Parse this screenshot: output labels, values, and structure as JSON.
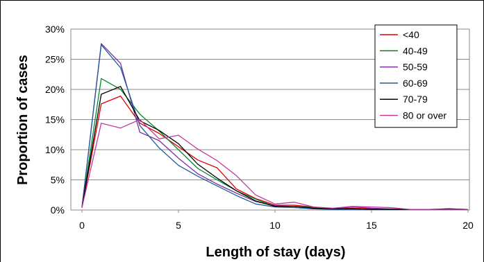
{
  "chart_data": {
    "type": "line",
    "title": "",
    "xlabel": "Length of stay (days)",
    "ylabel": "Proportion of cases",
    "xlim": [
      0,
      20
    ],
    "ylim": [
      0,
      30
    ],
    "x_ticks": [
      "0",
      "5",
      "10",
      "15",
      "20"
    ],
    "y_ticks": [
      "0%",
      "5%",
      "10%",
      "15%",
      "20%",
      "25%",
      "30%"
    ],
    "grid": "horizontal",
    "legend": "top-right",
    "x": [
      0,
      1,
      2,
      3,
      4,
      5,
      6,
      7,
      8,
      9,
      10,
      11,
      12,
      13,
      14,
      15,
      16,
      17,
      18,
      19,
      20
    ],
    "series": [
      {
        "name": "<40",
        "color": "#e00000",
        "values": [
          0.4,
          17.6,
          18.9,
          14.4,
          12.7,
          10.5,
          8.3,
          7.0,
          3.5,
          1.9,
          0.8,
          0.8,
          0.5,
          0.2,
          0.3,
          0.2,
          0.1,
          0.1,
          0.1,
          0.1,
          0.1
        ]
      },
      {
        "name": "40-49",
        "color": "#008a2e",
        "values": [
          0.4,
          21.8,
          20.0,
          15.9,
          13.1,
          10.0,
          6.9,
          5.0,
          3.2,
          1.8,
          0.6,
          0.6,
          0.4,
          0.2,
          0.2,
          0.1,
          0.1,
          0.1,
          0.1,
          0.1,
          0.1
        ]
      },
      {
        "name": "50-59",
        "color": "#7b2c9e",
        "values": [
          0.4,
          27.6,
          24.3,
          12.9,
          11.5,
          8.6,
          6.0,
          4.3,
          2.8,
          1.4,
          0.7,
          0.6,
          0.3,
          0.2,
          0.5,
          0.3,
          0.2,
          0.1,
          0.1,
          0.2,
          0.1
        ]
      },
      {
        "name": "60-69",
        "color": "#1f5d99",
        "values": [
          0.4,
          27.4,
          23.6,
          14.0,
          10.3,
          7.4,
          5.6,
          4.0,
          2.4,
          1.0,
          0.5,
          0.4,
          0.2,
          0.1,
          0.1,
          0.1,
          0.1,
          0.1,
          0.1,
          0.1,
          0.1
        ]
      },
      {
        "name": "70-79",
        "color": "#000000",
        "values": [
          0.4,
          19.2,
          20.5,
          14.8,
          13.2,
          11.0,
          7.6,
          5.3,
          3.2,
          1.5,
          0.6,
          0.6,
          0.3,
          0.2,
          0.2,
          0.1,
          0.1,
          0.1,
          0.1,
          0.2,
          0.1
        ]
      },
      {
        "name": "80 or over",
        "color": "#c0399e",
        "values": [
          0.4,
          14.4,
          13.6,
          15.0,
          11.8,
          12.4,
          10.1,
          8.2,
          5.7,
          2.5,
          1.0,
          1.3,
          0.5,
          0.3,
          0.6,
          0.5,
          0.4,
          0.1,
          0.1,
          0.1,
          0.1
        ]
      }
    ]
  }
}
